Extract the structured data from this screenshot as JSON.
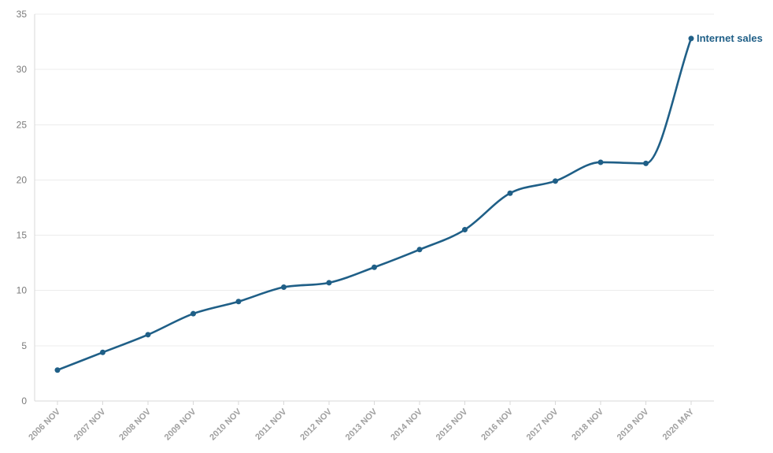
{
  "chart_data": {
    "type": "line",
    "title": "",
    "xlabel": "",
    "ylabel": "",
    "x": [
      "2006 NOV",
      "2007 NOV",
      "2008 NOV",
      "2009 NOV",
      "2010 NOV",
      "2011 NOV",
      "2012 NOV",
      "2013 NOV",
      "2014 NOV",
      "2015 NOV",
      "2016 NOV",
      "2017 NOV",
      "2018 NOV",
      "2019 NOV",
      "2020 MAY"
    ],
    "yticks": [
      0,
      5,
      10,
      15,
      20,
      25,
      30,
      35
    ],
    "ylim": [
      0,
      35
    ],
    "grid": true,
    "legend": "end-of-line label",
    "series": [
      {
        "name": "Internet sales",
        "color": "#1f5f87",
        "values": [
          2.8,
          4.4,
          6.0,
          7.9,
          9.0,
          10.3,
          10.7,
          12.1,
          13.7,
          15.5,
          18.8,
          19.9,
          21.6,
          21.5,
          32.8
        ]
      }
    ]
  }
}
